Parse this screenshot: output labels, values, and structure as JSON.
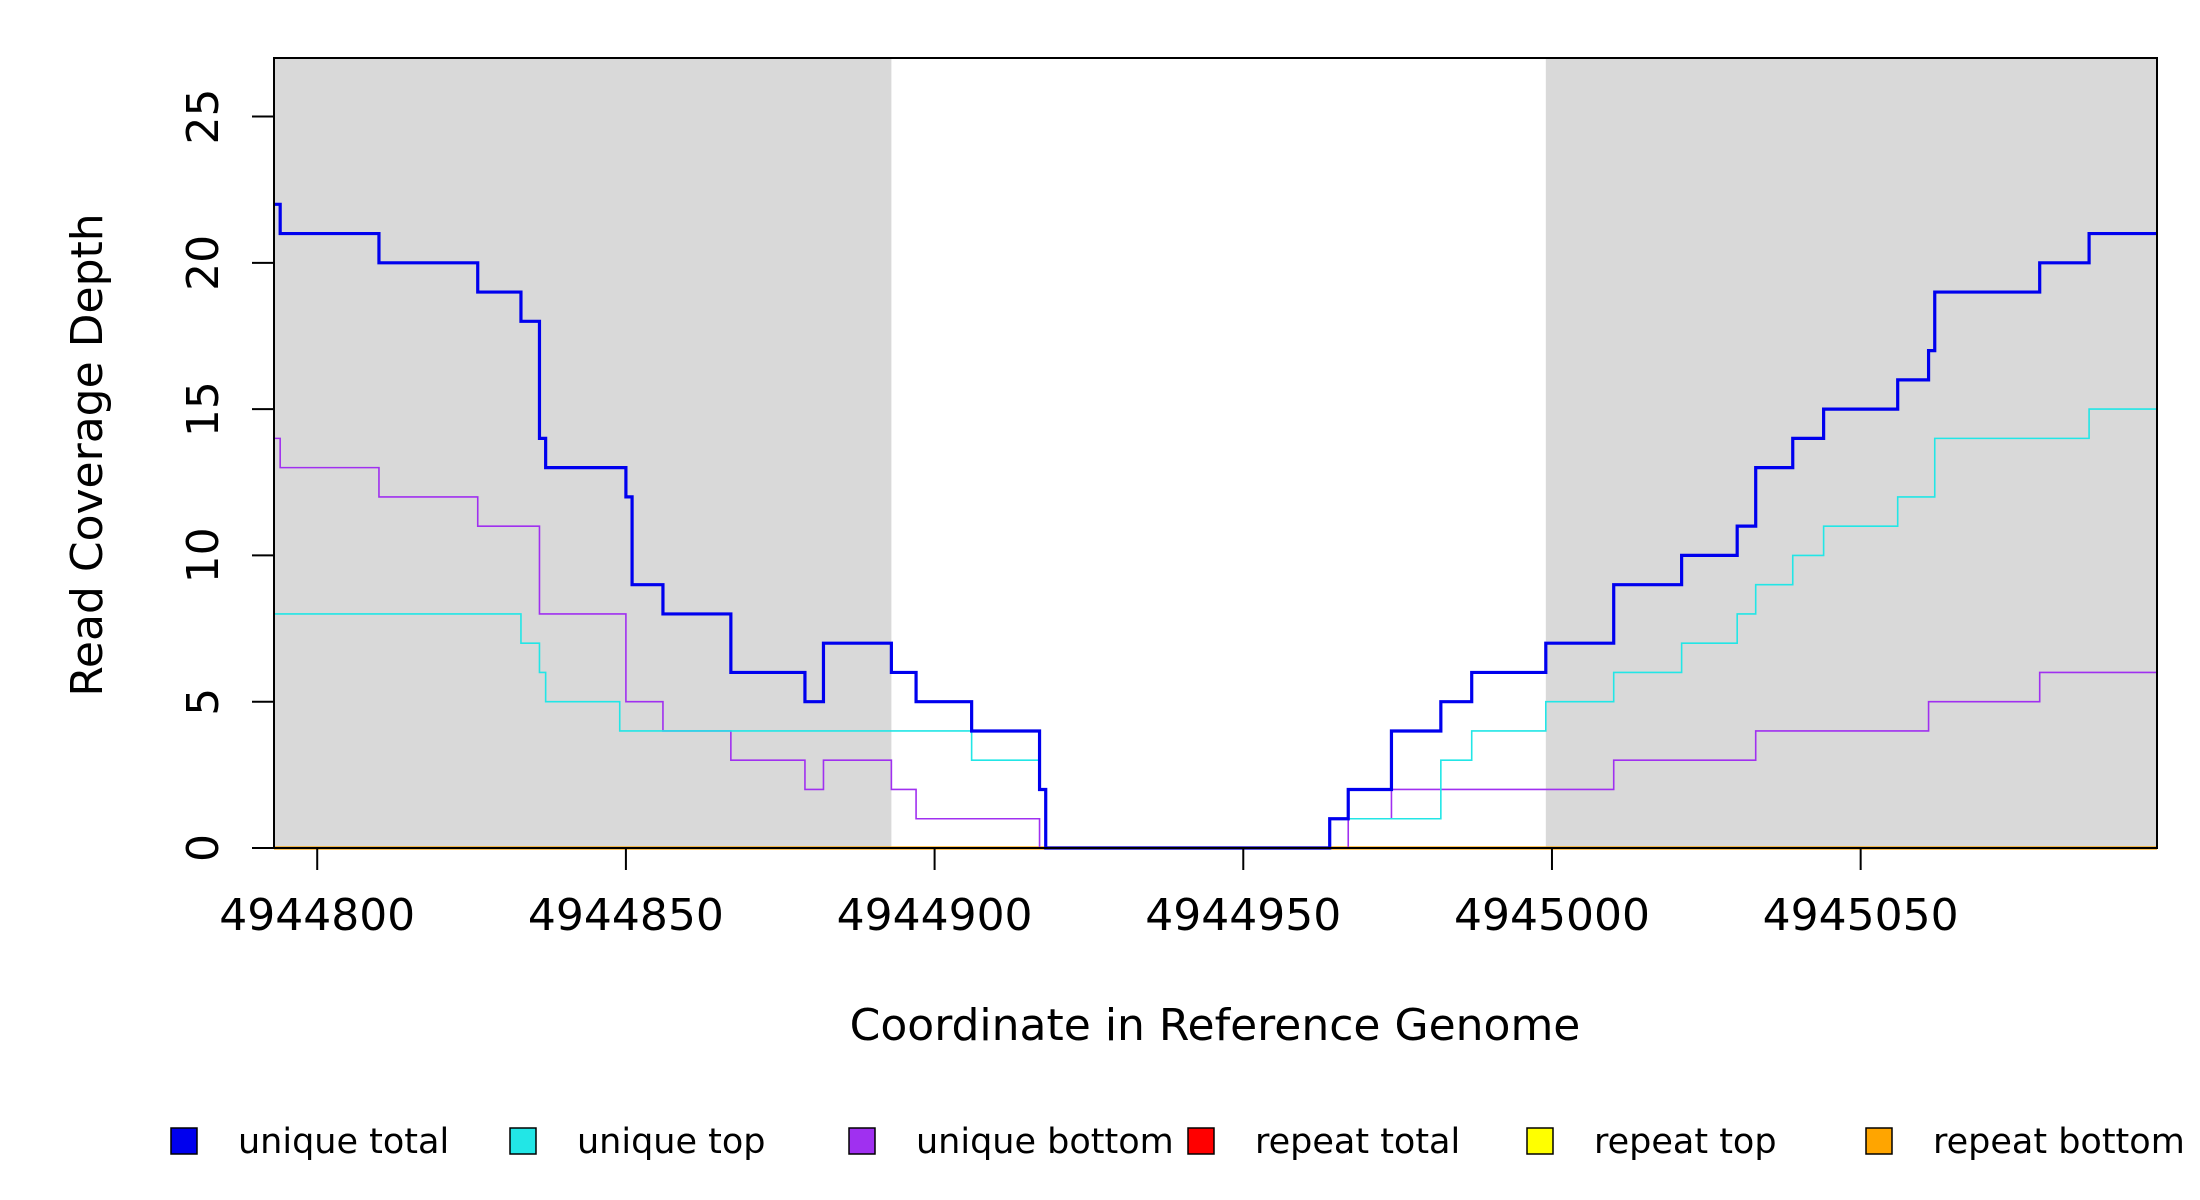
{
  "chart_data": {
    "type": "line",
    "title": "",
    "xlabel": "Coordinate in Reference Genome",
    "ylabel": "Read Coverage Depth",
    "xlim": [
      4944793,
      4945098
    ],
    "ylim": [
      0,
      27
    ],
    "xticks": [
      4944800,
      4944850,
      4944900,
      4944950,
      4945000,
      4945050
    ],
    "yticks": [
      0,
      5,
      10,
      15,
      20,
      25
    ],
    "shaded_regions": [
      [
        4944793,
        4944893
      ],
      [
        4944999,
        4945098
      ]
    ],
    "colors": {
      "shade": "#d9d9d9",
      "unique_total": "#0000ee",
      "unique_top": "#22e6e6",
      "unique_bottom": "#a030f0",
      "repeat_total": "#ff0000",
      "repeat_top": "#ffff00",
      "repeat_bottom": "#ffa500"
    },
    "legend_position": "bottom",
    "series": [
      {
        "name": "unique total",
        "color": "#0000ee",
        "line_width": 2,
        "x": [
          4944793,
          4944794,
          4944810,
          4944826,
          4944833,
          4944836,
          4944837,
          4944850,
          4944851,
          4944856,
          4944867,
          4944879,
          4944882,
          4944893,
          4944897,
          4944906,
          4944917,
          4944918,
          4944919,
          4944964,
          4944967,
          4944974,
          4944982,
          4944987,
          4944999,
          4945010,
          4945021,
          4945030,
          4945033,
          4945039,
          4945044,
          4945056,
          4945061,
          4945062,
          4945079,
          4945087,
          4945098
        ],
        "values": [
          22,
          21,
          20,
          19,
          18,
          14,
          13,
          12,
          9,
          8,
          6,
          5,
          7,
          6,
          5,
          4,
          2,
          0,
          0,
          1,
          2,
          4,
          5,
          6,
          7,
          9,
          10,
          11,
          13,
          14,
          15,
          16,
          17,
          19,
          20,
          21,
          21
        ]
      },
      {
        "name": "unique top",
        "color": "#22e6e6",
        "line_width": 1,
        "x": [
          4944793,
          4944833,
          4944836,
          4944837,
          4944849,
          4944882,
          4944906,
          4944917,
          4944918,
          4944919,
          4944964,
          4944967,
          4944982,
          4944987,
          4944999,
          4945010,
          4945021,
          4945030,
          4945033,
          4945039,
          4945044,
          4945056,
          4945062,
          4945087,
          4945098
        ],
        "values": [
          8,
          7,
          6,
          5,
          4,
          4,
          3,
          2,
          0,
          0,
          1,
          1,
          3,
          4,
          5,
          6,
          7,
          8,
          9,
          10,
          11,
          12,
          14,
          15,
          15
        ]
      },
      {
        "name": "unique bottom",
        "color": "#a030f0",
        "line_width": 1,
        "x": [
          4944793,
          4944794,
          4944810,
          4944826,
          4944836,
          4944850,
          4944856,
          4944867,
          4944879,
          4944882,
          4944893,
          4944897,
          4944917,
          4944919,
          4944967,
          4944974,
          4945010,
          4945033,
          4945061,
          4945079,
          4945098
        ],
        "values": [
          14,
          13,
          12,
          11,
          8,
          5,
          4,
          3,
          2,
          3,
          2,
          1,
          0,
          0,
          1,
          2,
          3,
          4,
          5,
          6,
          6
        ]
      },
      {
        "name": "repeat total",
        "color": "#ff0000",
        "line_width": 1,
        "x": [
          4944793,
          4945098
        ],
        "values": [
          0,
          0
        ]
      },
      {
        "name": "repeat top",
        "color": "#ffff00",
        "line_width": 1,
        "x": [
          4944793,
          4945098
        ],
        "values": [
          0,
          0
        ]
      },
      {
        "name": "repeat bottom",
        "color": "#ffa500",
        "line_width": 2,
        "x": [
          4944793,
          4945098
        ],
        "values": [
          0,
          0
        ]
      }
    ]
  }
}
